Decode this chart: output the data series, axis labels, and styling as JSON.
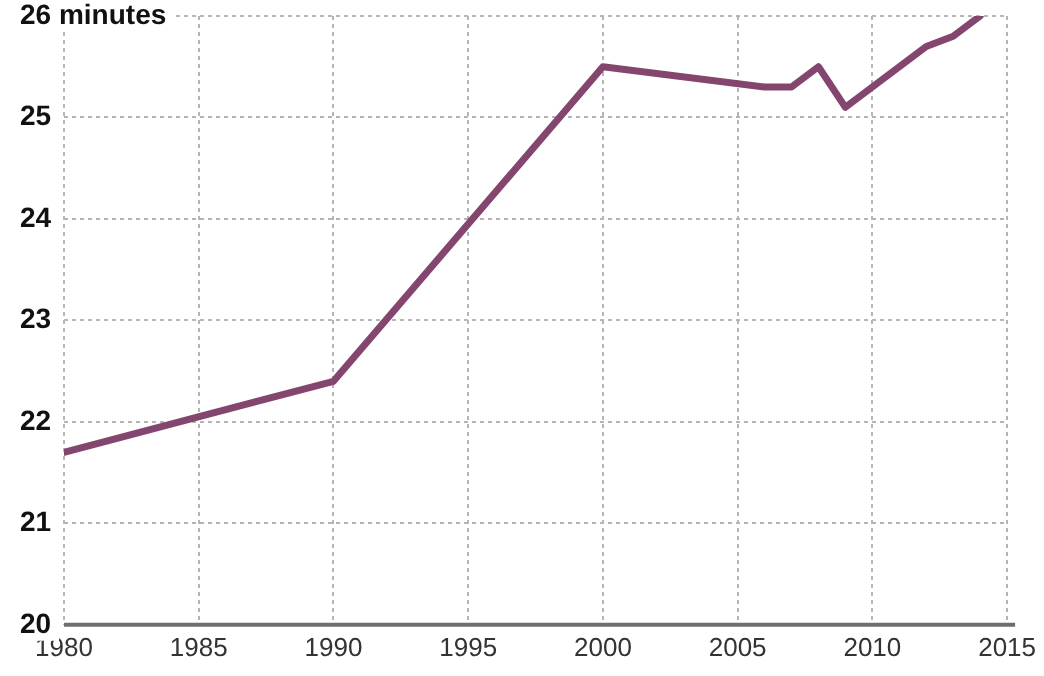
{
  "chart_data": {
    "type": "line",
    "x": [
      1980,
      1990,
      2000,
      2006,
      2007,
      2008,
      2009,
      2010,
      2011,
      2012,
      2013,
      2014
    ],
    "series": [
      {
        "color": "#84466f",
        "values": [
          21.7,
          22.4,
          25.5,
          25.3,
          25.3,
          25.5,
          25.1,
          25.3,
          25.5,
          25.7,
          25.8,
          26.0
        ]
      }
    ],
    "xlim": [
      1980,
      2015
    ],
    "xticks": [
      1980,
      1985,
      1990,
      1995,
      2000,
      2005,
      2010,
      2015
    ],
    "ylim": [
      20,
      26
    ],
    "yticks": [
      20,
      21,
      22,
      23,
      24,
      25,
      {
        "value": 26,
        "label": "26 minutes"
      }
    ],
    "grid": true,
    "legend": false,
    "marker": "none",
    "line_style": "solid"
  }
}
